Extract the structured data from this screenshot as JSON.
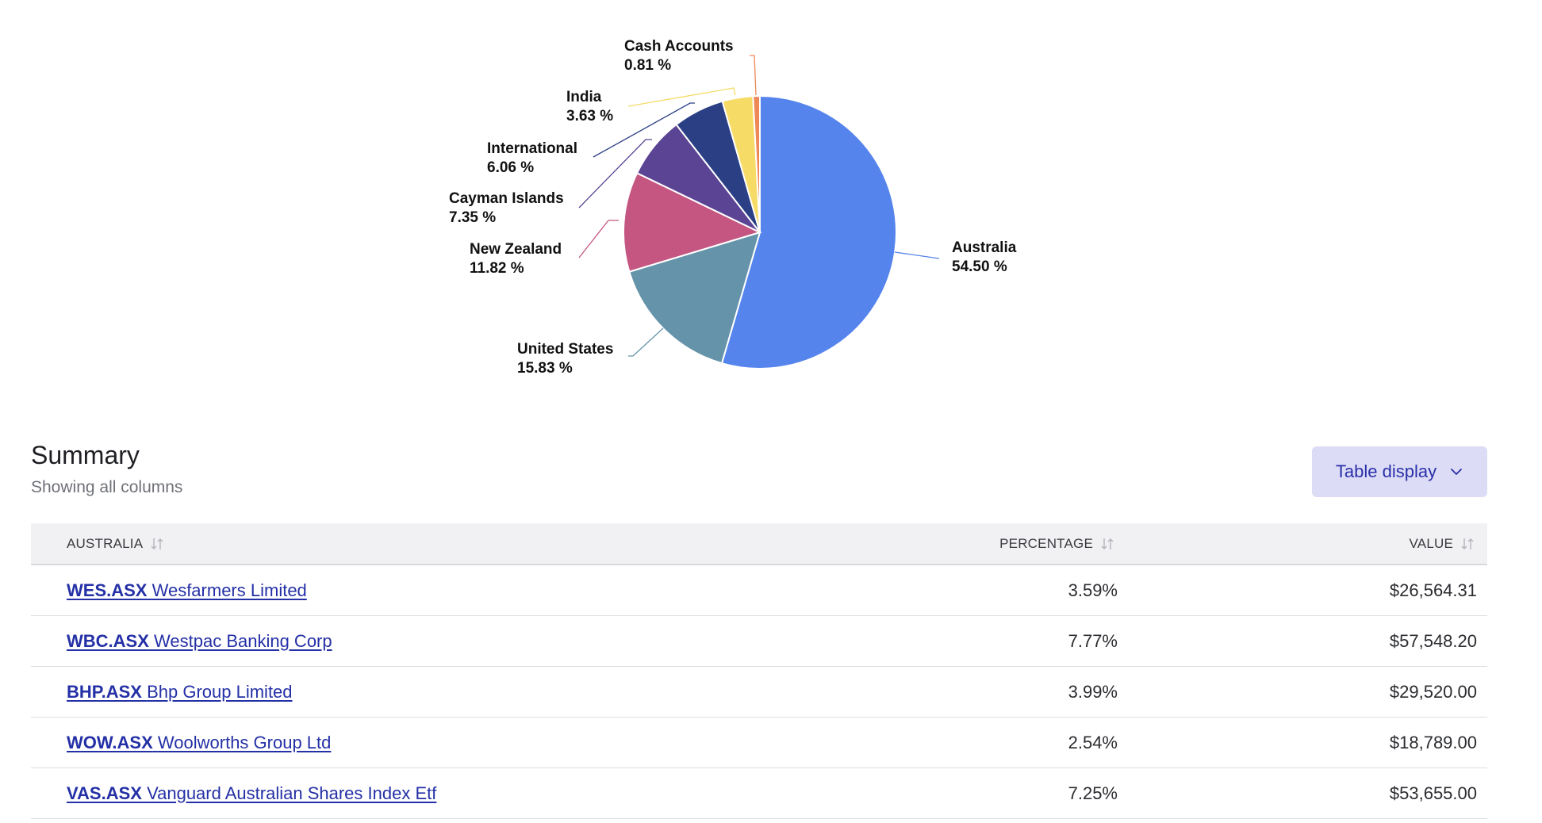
{
  "chart_data": {
    "type": "pie",
    "slices": [
      {
        "label": "Australia",
        "pct_text": "54.50 %",
        "value": 54.5,
        "color": "#5584ec"
      },
      {
        "label": "United States",
        "pct_text": "15.83 %",
        "value": 15.83,
        "color": "#6593a9"
      },
      {
        "label": "New Zealand",
        "pct_text": "11.82 %",
        "value": 11.82,
        "color": "#c55682"
      },
      {
        "label": "Cayman Islands",
        "pct_text": "7.35 %",
        "value": 7.35,
        "color": "#5b4494"
      },
      {
        "label": "International",
        "pct_text": "6.06 %",
        "value": 6.06,
        "color": "#2b3f85"
      },
      {
        "label": "India",
        "pct_text": "3.63 %",
        "value": 3.63,
        "color": "#f6dc67"
      },
      {
        "label": "Cash Accounts",
        "pct_text": "0.81 %",
        "value": 0.81,
        "color": "#ee8856"
      }
    ]
  },
  "summary": {
    "title": "Summary",
    "subtitle": "Showing all columns",
    "display_button": "Table display"
  },
  "table": {
    "headers": {
      "name": "AUSTRALIA",
      "percentage": "PERCENTAGE",
      "value": "VALUE"
    },
    "rows": [
      {
        "ticker": "WES.ASX",
        "name": "Wesfarmers Limited",
        "percentage": "3.59%",
        "value": "$26,564.31"
      },
      {
        "ticker": "WBC.ASX",
        "name": "Westpac Banking Corp",
        "percentage": "7.77%",
        "value": "$57,548.20"
      },
      {
        "ticker": "BHP.ASX",
        "name": "Bhp Group Limited",
        "percentage": "3.99%",
        "value": "$29,520.00"
      },
      {
        "ticker": "WOW.ASX",
        "name": "Woolworths Group Ltd",
        "percentage": "2.54%",
        "value": "$18,789.00"
      },
      {
        "ticker": "VAS.ASX",
        "name": "Vanguard Australian Shares Index Etf",
        "percentage": "7.25%",
        "value": "$53,655.00"
      }
    ]
  }
}
